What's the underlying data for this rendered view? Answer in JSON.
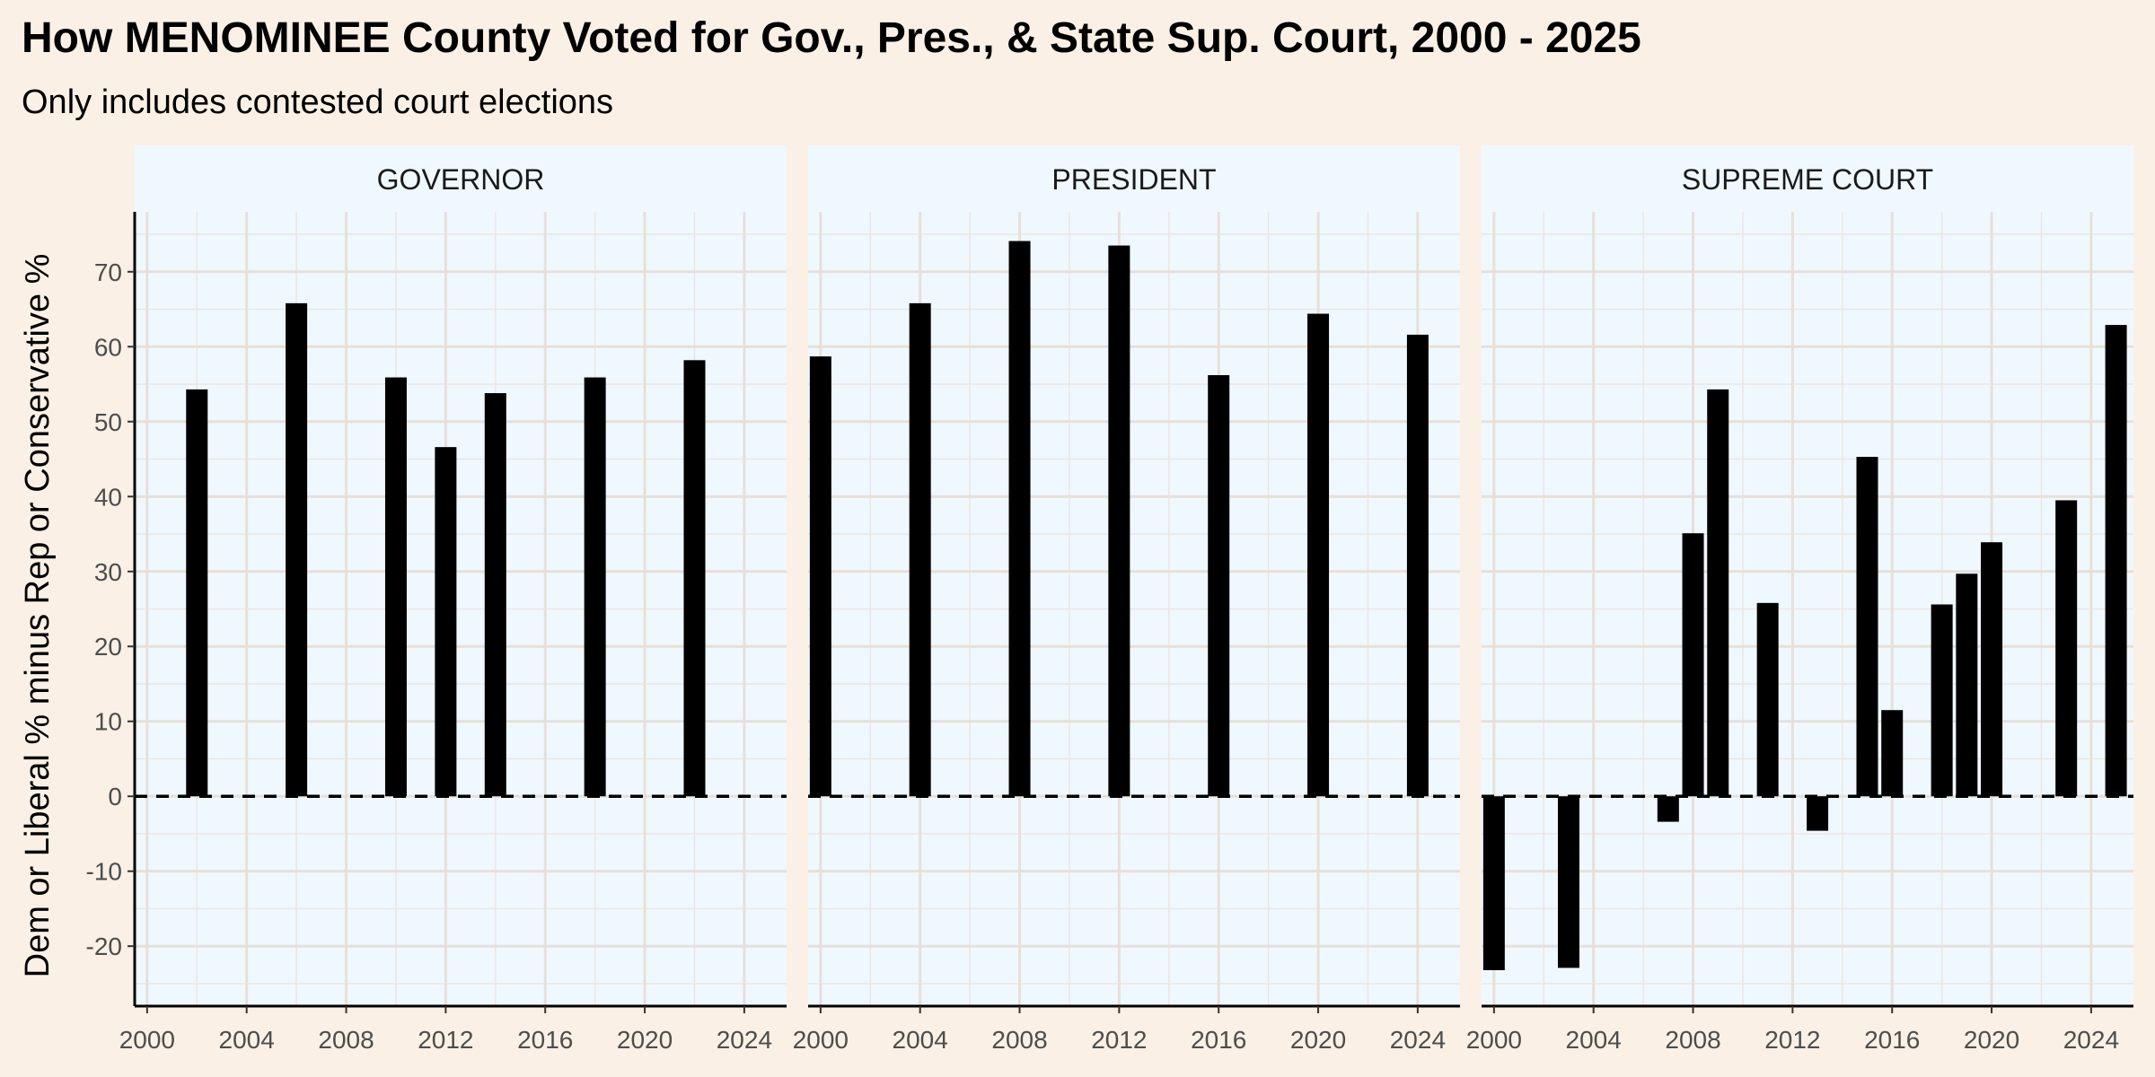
{
  "chart_data": {
    "type": "bar",
    "title": "How MENOMINEE County Voted for Gov., Pres., & State Sup. Court, 2000 - 2025",
    "subtitle": "Only includes contested court elections",
    "ylabel": "Dem or Liberal % minus Rep or Conservative %",
    "xlim": [
      1999.5,
      2025.7
    ],
    "ylim": [
      -28,
      78
    ],
    "x_ticks": [
      2000,
      2004,
      2008,
      2012,
      2016,
      2020,
      2024
    ],
    "y_ticks": [
      -20,
      -10,
      0,
      10,
      20,
      30,
      40,
      50,
      60,
      70
    ],
    "reference_line": 0,
    "bar_color": "#000000",
    "panel_background": "#f0f8ff",
    "strip_background": "#f0f8ff",
    "page_background": "#faf0e6",
    "panels": [
      {
        "label": "GOVERNOR",
        "x": [
          2002,
          2006,
          2010,
          2012,
          2014,
          2018,
          2022
        ],
        "values": [
          54.3,
          65.8,
          55.9,
          46.6,
          53.8,
          55.9,
          58.2
        ]
      },
      {
        "label": "PRESIDENT",
        "x": [
          2000,
          2004,
          2008,
          2012,
          2016,
          2020,
          2024
        ],
        "values": [
          58.7,
          65.8,
          74.1,
          73.5,
          56.2,
          64.4,
          61.6
        ]
      },
      {
        "label": "SUPREME COURT",
        "x": [
          2000,
          2003,
          2007,
          2008,
          2009,
          2011,
          2013,
          2015,
          2016,
          2018,
          2019,
          2020,
          2023,
          2025
        ],
        "values": [
          -23.2,
          -22.9,
          -3.4,
          35.1,
          54.3,
          25.8,
          -4.6,
          45.3,
          11.5,
          25.6,
          29.7,
          33.9,
          39.5,
          62.9
        ]
      }
    ]
  }
}
